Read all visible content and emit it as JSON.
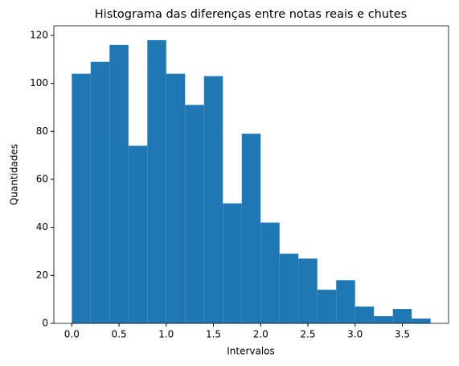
{
  "chart_data": {
    "type": "histogram",
    "title": "Histograma das diferenças entre notas reais e chutes",
    "x_label": "Intervalos",
    "y_label": "Quantidades",
    "bins": [
      0,
      0.2,
      0.4,
      0.6,
      0.8,
      1.0,
      1.2,
      1.4,
      1.6,
      1.8,
      2.0,
      2.2,
      2.4,
      2.6,
      2.8,
      3.0,
      3.2,
      3.4,
      3.6,
      3.8
    ],
    "values": [
      104,
      109,
      116,
      74,
      118,
      104,
      91,
      103,
      50,
      79,
      42,
      29,
      27,
      14,
      18,
      7,
      3,
      6,
      2
    ],
    "color": "#1f77b4",
    "xlim": [
      -0.19,
      3.99
    ],
    "ylim": [
      0,
      124
    ],
    "xticks": [
      {
        "value": 0,
        "label": "0.0"
      },
      0.5,
      {
        "value": 1,
        "label": "1.0"
      },
      1.5,
      {
        "value": 2,
        "label": "2.0"
      },
      2.5,
      {
        "value": 3,
        "label": "3.0"
      },
      3.5
    ],
    "yticks": [
      0,
      20,
      40,
      60,
      80,
      100,
      120
    ]
  }
}
